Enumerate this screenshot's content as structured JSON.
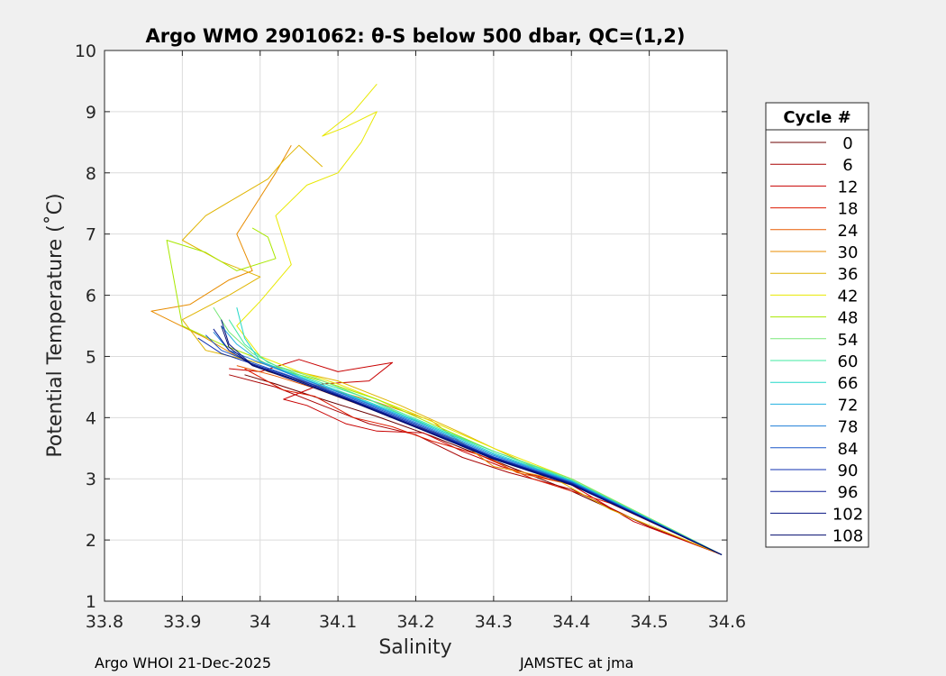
{
  "chart_data": {
    "type": "line",
    "title": "Argo WMO 2901062: θ-S below 500 dbar,  QC=(1,2)",
    "xlabel": "Salinity",
    "ylabel": "Potential Temperature (˚C)",
    "xlim": [
      33.8,
      34.6
    ],
    "ylim": [
      1,
      10
    ],
    "xticks": [
      "33.8",
      "33.9",
      "34",
      "34.1",
      "34.2",
      "34.3",
      "34.4",
      "34.5",
      "34.6"
    ],
    "yticks": [
      "1",
      "2",
      "3",
      "4",
      "5",
      "6",
      "7",
      "8",
      "9",
      "10"
    ],
    "grid": true,
    "legend": {
      "title": "Cycle #",
      "placement": "right-outside",
      "entries": [
        "0",
        "6",
        "12",
        "18",
        "24",
        "30",
        "36",
        "42",
        "48",
        "54",
        "60",
        "66",
        "72",
        "78",
        "84",
        "90",
        "96",
        "102",
        "108"
      ],
      "colors": [
        "#6b0000",
        "#a80000",
        "#c80000",
        "#dd1a00",
        "#e85a00",
        "#e88c00",
        "#e0b400",
        "#e8e800",
        "#a8e800",
        "#78e878",
        "#40e8a0",
        "#20d8c8",
        "#20b0e0",
        "#1f7fd8",
        "#1a56c8",
        "#1030b0",
        "#0a1c96",
        "#061482",
        "#020c6e"
      ]
    },
    "series": [
      {
        "name": "0",
        "color": "#6b0000",
        "s": [
          34.593,
          34.5,
          34.4,
          34.3,
          34.22,
          34.15,
          34.08,
          34.02,
          33.98
        ],
        "t": [
          1.76,
          2.22,
          2.8,
          3.3,
          3.7,
          4.02,
          4.3,
          4.55,
          4.7
        ]
      },
      {
        "name": "6",
        "color": "#a80000",
        "s": [
          34.593,
          34.5,
          34.4,
          34.32,
          34.26,
          34.2,
          34.14,
          34.08,
          34.02,
          33.96
        ],
        "t": [
          1.76,
          2.22,
          2.83,
          3.1,
          3.35,
          3.72,
          3.9,
          4.2,
          4.5,
          4.7
        ]
      },
      {
        "name": "12",
        "color": "#c80000",
        "s": [
          34.593,
          34.48,
          34.4,
          34.31,
          34.26,
          34.21,
          34.15,
          34.11,
          34.06,
          34.03,
          34.08,
          34.14,
          34.17,
          34.1,
          34.05,
          34.0,
          33.96
        ],
        "t": [
          1.76,
          2.3,
          2.9,
          3.2,
          3.45,
          3.75,
          3.78,
          3.9,
          4.2,
          4.3,
          4.55,
          4.6,
          4.9,
          4.75,
          4.95,
          4.75,
          4.8
        ]
      },
      {
        "name": "18",
        "color": "#dd1a00",
        "s": [
          34.593,
          34.45,
          34.35,
          34.28,
          34.22,
          34.17,
          34.12,
          34.07,
          34.03,
          33.98
        ],
        "t": [
          1.76,
          2.6,
          3.0,
          3.4,
          3.62,
          3.85,
          4.0,
          4.35,
          4.45,
          4.8
        ]
      },
      {
        "name": "24",
        "color": "#e85a00",
        "s": [
          34.593,
          34.42,
          34.33,
          34.25,
          34.19,
          34.13,
          34.07,
          34.02,
          33.97
        ],
        "t": [
          1.76,
          2.85,
          3.1,
          3.65,
          3.9,
          4.2,
          4.48,
          4.68,
          4.85
        ]
      },
      {
        "name": "30",
        "color": "#e88c00",
        "s": [
          34.593,
          34.4,
          34.3,
          34.22,
          34.15,
          34.08,
          34.01,
          33.97,
          33.93,
          33.86,
          33.91,
          33.96,
          33.99,
          33.97,
          34.0,
          34.02,
          34.04
        ],
        "t": [
          1.76,
          2.95,
          3.2,
          3.95,
          4.25,
          4.5,
          4.75,
          5.0,
          5.3,
          5.74,
          5.85,
          6.25,
          6.4,
          7.0,
          7.6,
          8.0,
          8.45
        ]
      },
      {
        "name": "36",
        "color": "#e0b400",
        "s": [
          34.593,
          34.45,
          34.35,
          34.25,
          34.18,
          34.1,
          34.03,
          33.98,
          33.93,
          33.9,
          33.96,
          34.0,
          33.95,
          33.9,
          33.93,
          33.97,
          34.01,
          34.03,
          34.05,
          34.08
        ],
        "t": [
          1.76,
          2.5,
          3.2,
          3.8,
          4.2,
          4.6,
          4.8,
          4.95,
          5.1,
          5.6,
          6.0,
          6.3,
          6.55,
          6.9,
          7.3,
          7.6,
          7.9,
          8.2,
          8.45,
          8.1
        ]
      },
      {
        "name": "42",
        "color": "#e8e800",
        "s": [
          34.593,
          34.4,
          34.3,
          34.2,
          34.15,
          34.1,
          34.05,
          34.0,
          33.97,
          34.0,
          34.04,
          34.02,
          34.06,
          34.1,
          34.13,
          34.15,
          34.11,
          34.08,
          34.12,
          34.15
        ],
        "t": [
          1.76,
          3.0,
          3.5,
          4.05,
          4.3,
          4.55,
          4.75,
          5.0,
          5.5,
          5.9,
          6.5,
          7.3,
          7.8,
          8.0,
          8.5,
          9.0,
          8.75,
          8.6,
          9.0,
          9.45
        ]
      },
      {
        "name": "48",
        "color": "#a8e800",
        "s": [
          34.593,
          34.4,
          34.3,
          34.22,
          34.15,
          34.08,
          34.02,
          33.99,
          33.95,
          33.9,
          33.88,
          33.93,
          33.97,
          34.02,
          34.01,
          33.99
        ],
        "t": [
          1.76,
          3.0,
          3.45,
          3.9,
          4.3,
          4.6,
          4.8,
          5.0,
          5.2,
          5.5,
          6.9,
          6.7,
          6.4,
          6.6,
          6.95,
          7.1
        ]
      },
      {
        "name": "54",
        "color": "#78e878",
        "s": [
          34.593,
          34.4,
          34.3,
          34.2,
          34.13,
          34.07,
          34.02,
          33.99,
          33.96,
          33.94
        ],
        "t": [
          1.76,
          3.0,
          3.45,
          3.95,
          4.35,
          4.65,
          4.85,
          5.05,
          5.4,
          5.8
        ]
      },
      {
        "name": "60",
        "color": "#40e8a0",
        "s": [
          34.593,
          34.4,
          34.3,
          34.2,
          34.13,
          34.06,
          34.01,
          33.98,
          33.96
        ],
        "t": [
          1.76,
          2.98,
          3.45,
          3.98,
          4.35,
          4.65,
          4.9,
          5.2,
          5.6
        ]
      },
      {
        "name": "66",
        "color": "#20d8c8",
        "s": [
          34.593,
          34.4,
          34.3,
          34.2,
          34.12,
          34.05,
          34.0,
          33.98,
          33.97
        ],
        "t": [
          1.76,
          2.97,
          3.42,
          3.96,
          4.35,
          4.68,
          4.92,
          5.3,
          5.8
        ]
      },
      {
        "name": "72",
        "color": "#20b0e0",
        "s": [
          34.593,
          34.4,
          34.3,
          34.2,
          34.12,
          34.05,
          34.0,
          33.97,
          33.95
        ],
        "t": [
          1.76,
          2.96,
          3.4,
          3.94,
          4.33,
          4.66,
          4.92,
          5.2,
          5.5
        ]
      },
      {
        "name": "78",
        "color": "#1f7fd8",
        "s": [
          34.593,
          34.4,
          34.3,
          34.2,
          34.12,
          34.05,
          34.0,
          33.96,
          33.94
        ],
        "t": [
          1.76,
          2.95,
          3.38,
          3.92,
          4.32,
          4.65,
          4.9,
          5.1,
          5.4
        ]
      },
      {
        "name": "84",
        "color": "#1a56c8",
        "s": [
          34.593,
          34.4,
          34.3,
          34.2,
          34.12,
          34.05,
          33.99,
          33.95,
          33.93
        ],
        "t": [
          1.76,
          2.94,
          3.36,
          3.9,
          4.3,
          4.63,
          4.9,
          5.1,
          5.35
        ]
      },
      {
        "name": "90",
        "color": "#1030b0",
        "s": [
          34.593,
          34.4,
          34.3,
          34.2,
          34.12,
          34.05,
          33.99,
          33.95,
          33.92
        ],
        "t": [
          1.76,
          2.93,
          3.35,
          3.88,
          4.28,
          4.62,
          4.88,
          5.05,
          5.3
        ]
      },
      {
        "name": "96",
        "color": "#0a1c96",
        "s": [
          34.593,
          34.4,
          34.3,
          34.2,
          34.12,
          34.05,
          33.99,
          33.96,
          33.94
        ],
        "t": [
          1.76,
          2.92,
          3.34,
          3.86,
          4.27,
          4.6,
          4.86,
          5.1,
          5.45
        ]
      },
      {
        "name": "102",
        "color": "#061482",
        "s": [
          34.593,
          34.4,
          34.3,
          34.2,
          34.12,
          34.05,
          33.99,
          33.96,
          33.95
        ],
        "t": [
          1.76,
          2.91,
          3.33,
          3.85,
          4.26,
          4.6,
          4.86,
          5.2,
          5.6
        ]
      },
      {
        "name": "108",
        "color": "#020c6e",
        "s": [
          34.593,
          34.4,
          34.3,
          34.2,
          34.12,
          34.05,
          33.99,
          33.96,
          33.95
        ],
        "t": [
          1.76,
          2.9,
          3.32,
          3.84,
          4.25,
          4.58,
          4.85,
          5.15,
          5.5
        ]
      }
    ]
  },
  "footer": {
    "left": "Argo WHOI 21-Dec-2025",
    "right": "JAMSTEC at jma"
  }
}
